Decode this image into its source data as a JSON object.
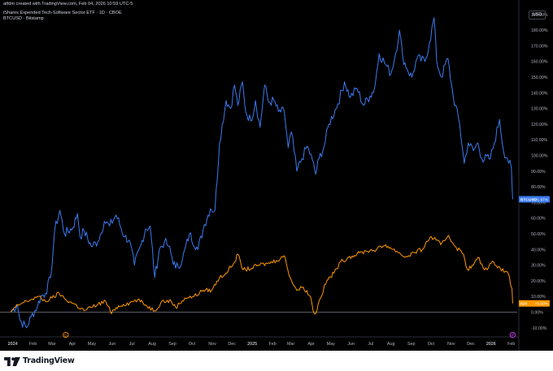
{
  "header": {
    "credit": "atfdm created with TradingView.com, Feb 04, 2026 10:59 UTC-5",
    "series_1_title": "iShares Expended Tech-Software Sector ETF · 1D · CBOE",
    "series_2_title": "BTCUSD · Bitstamp",
    "currency": "USD"
  },
  "footer": {
    "brand": "TradingView",
    "logo_icon": "tradingview-logo-icon"
  },
  "markers": {
    "dividend_icon": "dividend-marker-icon",
    "earnings_icon": "earnings-marker-icon"
  },
  "chart_data": {
    "type": "line",
    "title": "",
    "xlabel": "",
    "ylabel": "",
    "y_axis_side": "right",
    "y_format": "percent",
    "ylim": [
      -15,
      197
    ],
    "xlim": [
      "2023-12-15",
      "2026-02-10"
    ],
    "grid": false,
    "background": "#000000",
    "y_ticks": [
      -10,
      0,
      10,
      20,
      30,
      40,
      50,
      60,
      70,
      80,
      90,
      100,
      110,
      120,
      130,
      140,
      150,
      160,
      170,
      180,
      190
    ],
    "y_tick_labels": [
      "-10.00%",
      "0.00%",
      "10.00%",
      "20.00%",
      "30.00%",
      "40.00%",
      "50.00%",
      "60.00%",
      "70.00%",
      "80.00%",
      "90.00%",
      "100.00%",
      "110.00%",
      "120.00%",
      "130.00%",
      "140.00%",
      "150.00%",
      "160.00%",
      "170.00%",
      "180.00%",
      "190.00%"
    ],
    "x_ticks": [
      {
        "date": "2024-01-01",
        "label": "2024",
        "bold": true
      },
      {
        "date": "2024-02-01",
        "label": "Feb"
      },
      {
        "date": "2024-03-01",
        "label": "Mar"
      },
      {
        "date": "2024-04-01",
        "label": "Apr"
      },
      {
        "date": "2024-05-01",
        "label": "May"
      },
      {
        "date": "2024-06-01",
        "label": "Jun"
      },
      {
        "date": "2024-07-01",
        "label": "Jul"
      },
      {
        "date": "2024-08-01",
        "label": "Aug"
      },
      {
        "date": "2024-09-01",
        "label": "Sep"
      },
      {
        "date": "2024-10-01",
        "label": "Oct"
      },
      {
        "date": "2024-11-01",
        "label": "Nov"
      },
      {
        "date": "2024-12-01",
        "label": "Dec"
      },
      {
        "date": "2025-01-01",
        "label": "2025",
        "bold": true
      },
      {
        "date": "2025-02-01",
        "label": "Feb"
      },
      {
        "date": "2025-03-01",
        "label": "Mar"
      },
      {
        "date": "2025-04-01",
        "label": "Apr"
      },
      {
        "date": "2025-05-01",
        "label": "May"
      },
      {
        "date": "2025-06-01",
        "label": "Jun"
      },
      {
        "date": "2025-07-01",
        "label": "Jul"
      },
      {
        "date": "2025-08-01",
        "label": "Aug"
      },
      {
        "date": "2025-09-01",
        "label": "Sep"
      },
      {
        "date": "2025-10-01",
        "label": "Oct"
      },
      {
        "date": "2025-11-01",
        "label": "Nov"
      },
      {
        "date": "2025-12-01",
        "label": "Dec"
      },
      {
        "date": "2026-01-01",
        "label": "2026",
        "bold": true
      },
      {
        "date": "2026-02-01",
        "label": "Feb"
      }
    ],
    "baseline": 0,
    "series": [
      {
        "name": "BTCUSD",
        "color": "#3a7bf0",
        "last_label": "+71.97%",
        "points": [
          [
            "2023-12-29",
            0
          ],
          [
            "2024-01-08",
            5
          ],
          [
            "2024-01-12",
            -5
          ],
          [
            "2024-01-22",
            -10
          ],
          [
            "2024-01-29",
            -3
          ],
          [
            "2024-02-08",
            4
          ],
          [
            "2024-02-13",
            10
          ],
          [
            "2024-02-20",
            12
          ],
          [
            "2024-02-28",
            22
          ],
          [
            "2024-03-05",
            52
          ],
          [
            "2024-03-13",
            65
          ],
          [
            "2024-03-20",
            50
          ],
          [
            "2024-03-27], 58",
            58
          ],
          [
            "2024-04-02",
            54
          ],
          [
            "2024-04-09",
            63
          ],
          [
            "2024-04-13",
            48
          ],
          [
            "2024-04-19",
            52
          ],
          [
            "2024-04-30",
            42
          ],
          [
            "2024-05-10",
            45
          ],
          [
            "2024-05-20",
            58
          ],
          [
            "2024-05-28",
            55
          ],
          [
            "2024-06-07",
            62
          ],
          [
            "2024-06-20",
            48
          ],
          [
            "2024-06-27",
            46
          ],
          [
            "2024-07-05",
            30
          ],
          [
            "2024-07-15",
            43
          ],
          [
            "2024-07-22",
            53
          ],
          [
            "2024-07-29",
            55
          ],
          [
            "2024-08-05",
            22
          ],
          [
            "2024-08-12",
            40
          ],
          [
            "2024-08-20",
            45
          ],
          [
            "2024-08-26",
            42
          ],
          [
            "2024-09-06",
            28
          ],
          [
            "2024-09-16",
            33
          ],
          [
            "2024-09-27",
            50
          ],
          [
            "2024-10-10",
            40
          ],
          [
            "2024-10-20",
            56
          ],
          [
            "2024-10-29",
            66
          ],
          [
            "2024-11-05",
            65
          ],
          [
            "2024-11-12",
            108
          ],
          [
            "2024-11-22",
            135
          ],
          [
            "2024-11-29",
            130
          ],
          [
            "2024-12-05",
            145
          ],
          [
            "2024-12-10",
            132
          ],
          [
            "2024-12-17",
            147
          ],
          [
            "2024-12-22",
            128
          ],
          [
            "2024-12-30",
            122
          ],
          [
            "2025-01-06",
            135
          ],
          [
            "2025-01-13",
            118
          ],
          [
            "2025-01-20",
            145
          ],
          [
            "2025-01-26",
            134
          ],
          [
            "2025-02-03",
            135
          ],
          [
            "2025-02-10",
            128
          ],
          [
            "2025-02-19",
            128
          ],
          [
            "2025-02-25",
            105
          ],
          [
            "2025-03-02",
            115
          ],
          [
            "2025-03-10",
            90
          ],
          [
            "2025-03-18",
            98
          ],
          [
            "2025-03-26",
            106
          ],
          [
            "2025-04-03",
            97
          ],
          [
            "2025-04-08",
            88
          ],
          [
            "2025-04-13",
            98
          ],
          [
            "2025-04-21",
            106
          ],
          [
            "2025-04-28",
            120
          ],
          [
            "2025-05-12",
            133
          ],
          [
            "2025-05-22",
            147
          ],
          [
            "2025-05-31",
            137
          ],
          [
            "2025-06-10",
            143
          ],
          [
            "2025-06-20",
            132
          ],
          [
            "2025-06-30",
            138
          ],
          [
            "2025-07-07",
            143
          ],
          [
            "2025-07-14",
            165
          ],
          [
            "2025-07-24",
            158
          ],
          [
            "2025-08-01",
            152
          ],
          [
            "2025-08-08",
            165
          ],
          [
            "2025-08-14",
            180
          ],
          [
            "2025-08-19",
            163
          ],
          [
            "2025-08-26",
            155
          ],
          [
            "2025-09-02",
            150
          ],
          [
            "2025-09-10",
            162
          ],
          [
            "2025-09-22",
            160
          ],
          [
            "2025-09-29",
            172
          ],
          [
            "2025-10-06",
            188
          ],
          [
            "2025-10-10",
            160
          ],
          [
            "2025-10-17",
            150
          ],
          [
            "2025-10-27",
            162
          ],
          [
            "2025-11-04",
            138
          ],
          [
            "2025-11-14",
            120
          ],
          [
            "2025-11-21",
            95
          ],
          [
            "2025-11-27",
            108
          ],
          [
            "2025-12-05",
            103
          ],
          [
            "2025-12-12",
            108
          ],
          [
            "2025-12-18",
            98
          ],
          [
            "2025-12-31",
            98
          ],
          [
            "2026-01-06",
            108
          ],
          [
            "2026-01-14",
            123
          ],
          [
            "2026-01-20",
            103
          ],
          [
            "2026-01-26",
            98
          ],
          [
            "2026-02-01",
            92
          ],
          [
            "2026-02-03",
            72
          ]
        ]
      },
      {
        "name": "IGV",
        "color": "#ff9800",
        "last_label": "+5.60%",
        "points": [
          [
            "2023-12-29",
            0
          ],
          [
            "2024-01-05",
            3
          ],
          [
            "2024-01-12",
            5
          ],
          [
            "2024-01-22",
            7
          ],
          [
            "2024-01-29",
            8
          ],
          [
            "2024-02-08",
            10
          ],
          [
            "2024-02-20",
            7
          ],
          [
            "2024-03-01",
            9
          ],
          [
            "2024-03-12",
            12
          ],
          [
            "2024-03-22",
            8
          ],
          [
            "2024-04-05",
            5
          ],
          [
            "2024-04-19",
            1
          ],
          [
            "2024-04-30",
            3
          ],
          [
            "2024-05-10",
            5
          ],
          [
            "2024-05-22",
            7
          ],
          [
            "2024-05-31",
            -1
          ],
          [
            "2024-06-07",
            3
          ],
          [
            "2024-06-18",
            5
          ],
          [
            "2024-06-28",
            6
          ],
          [
            "2024-07-10",
            8
          ],
          [
            "2024-07-24",
            4
          ],
          [
            "2024-08-05",
            1
          ],
          [
            "2024-08-16",
            7
          ],
          [
            "2024-08-30",
            7
          ],
          [
            "2024-09-06",
            3
          ],
          [
            "2024-09-20",
            9
          ],
          [
            "2024-10-04",
            10
          ],
          [
            "2024-10-18",
            14
          ],
          [
            "2024-10-31",
            14
          ],
          [
            "2024-11-12",
            22
          ],
          [
            "2024-11-22",
            25
          ],
          [
            "2024-12-05",
            32
          ],
          [
            "2024-12-10",
            37
          ],
          [
            "2024-12-18",
            27
          ],
          [
            "2024-12-31",
            28
          ],
          [
            "2025-01-10",
            30
          ],
          [
            "2025-01-24",
            31
          ],
          [
            "2025-02-07",
            33
          ],
          [
            "2025-02-19",
            36
          ],
          [
            "2025-02-28",
            22
          ],
          [
            "2025-03-10",
            14
          ],
          [
            "2025-03-20",
            16
          ],
          [
            "2025-03-31",
            10
          ],
          [
            "2025-04-04",
            1
          ],
          [
            "2025-04-08",
            -1
          ],
          [
            "2025-04-14",
            8
          ],
          [
            "2025-04-25",
            20
          ],
          [
            "2025-05-06",
            25
          ],
          [
            "2025-05-16",
            32
          ],
          [
            "2025-05-28",
            35
          ],
          [
            "2025-06-10",
            37
          ],
          [
            "2025-06-24",
            39
          ],
          [
            "2025-07-10",
            40
          ],
          [
            "2025-07-24",
            43
          ],
          [
            "2025-08-04",
            40
          ],
          [
            "2025-08-14",
            38
          ],
          [
            "2025-08-22",
            35
          ],
          [
            "2025-09-05",
            38
          ],
          [
            "2025-09-18",
            40
          ],
          [
            "2025-09-30",
            48
          ],
          [
            "2025-10-09",
            46
          ],
          [
            "2025-10-16",
            43
          ],
          [
            "2025-10-28",
            49
          ],
          [
            "2025-11-07",
            42
          ],
          [
            "2025-11-20",
            37
          ],
          [
            "2025-11-26",
            27
          ],
          [
            "2025-12-05",
            30
          ],
          [
            "2025-12-12",
            35
          ],
          [
            "2025-12-22",
            27
          ],
          [
            "2026-01-05",
            32
          ],
          [
            "2026-01-15",
            28
          ],
          [
            "2026-01-27",
            25
          ],
          [
            "2026-02-02",
            15
          ],
          [
            "2026-02-03",
            5.6
          ]
        ]
      }
    ],
    "axis_text_color": "#b2b5be",
    "dividend_marker_date": "2024-03-22",
    "earnings_marker_date": "2026-02-03"
  }
}
